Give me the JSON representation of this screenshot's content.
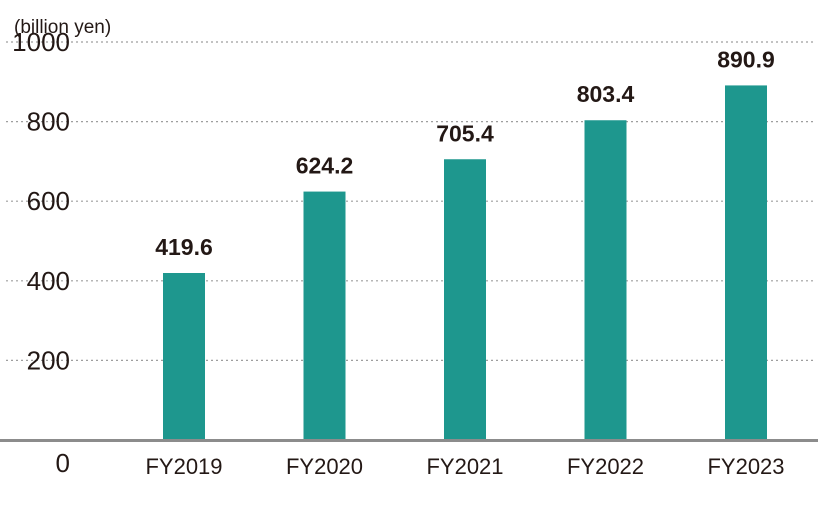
{
  "chart_data": {
    "type": "bar",
    "unit_label": "(billion yen)",
    "categories": [
      "FY2019",
      "FY2020",
      "FY2021",
      "FY2022",
      "FY2023"
    ],
    "values": [
      419.6,
      624.2,
      705.4,
      803.4,
      890.9
    ],
    "data_labels": [
      "419.6",
      "624.2",
      "705.4",
      "803.4",
      "890.9"
    ],
    "yticks": [
      0,
      200,
      400,
      600,
      800,
      1000
    ],
    "ylim": [
      0,
      1000
    ],
    "grid": true,
    "bar_color": "#1e978e",
    "title": "",
    "xlabel": "",
    "ylabel": ""
  }
}
